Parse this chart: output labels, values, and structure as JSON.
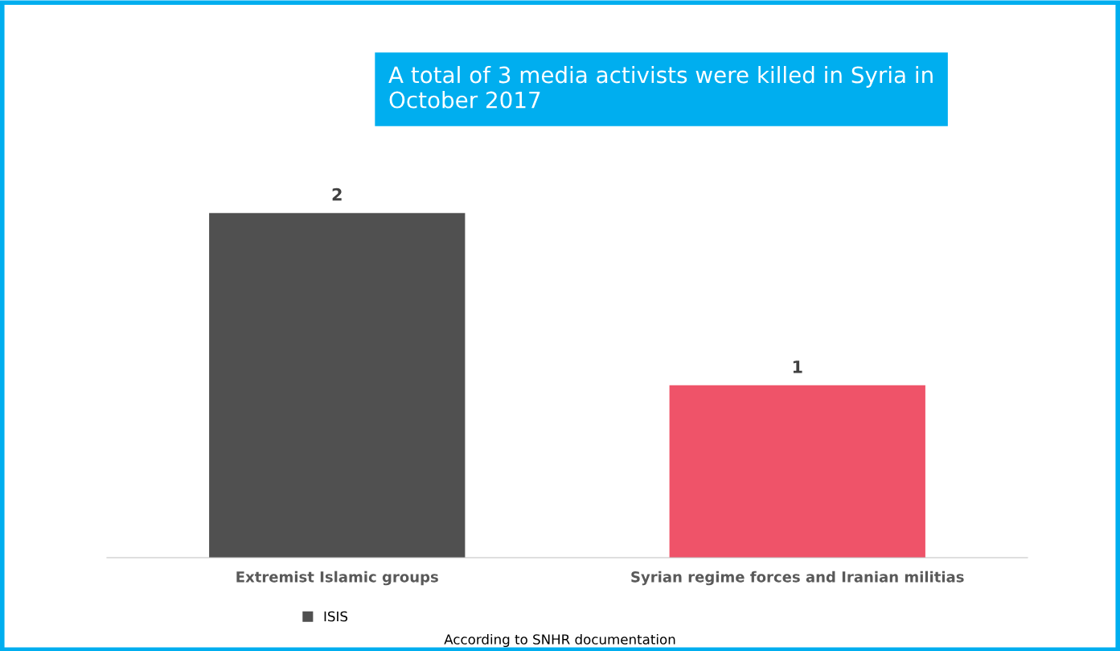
{
  "chart_data": {
    "type": "bar",
    "title": "A total of 3 media activists were killed in Syria in\nOctober 2017",
    "categories": [
      "Extremist Islamic groups",
      "Syrian regime forces and Iranian militias"
    ],
    "series": [
      {
        "name": "ISIS",
        "color": "#505050",
        "values": [
          2,
          null
        ]
      },
      {
        "color": "#ef5369",
        "values": [
          null,
          1
        ]
      }
    ],
    "tick_labels": "x",
    "data_labels": true,
    "legend": "bottom",
    "grid": false,
    "annotations": [
      "According to SNHR documentation"
    ]
  }
}
